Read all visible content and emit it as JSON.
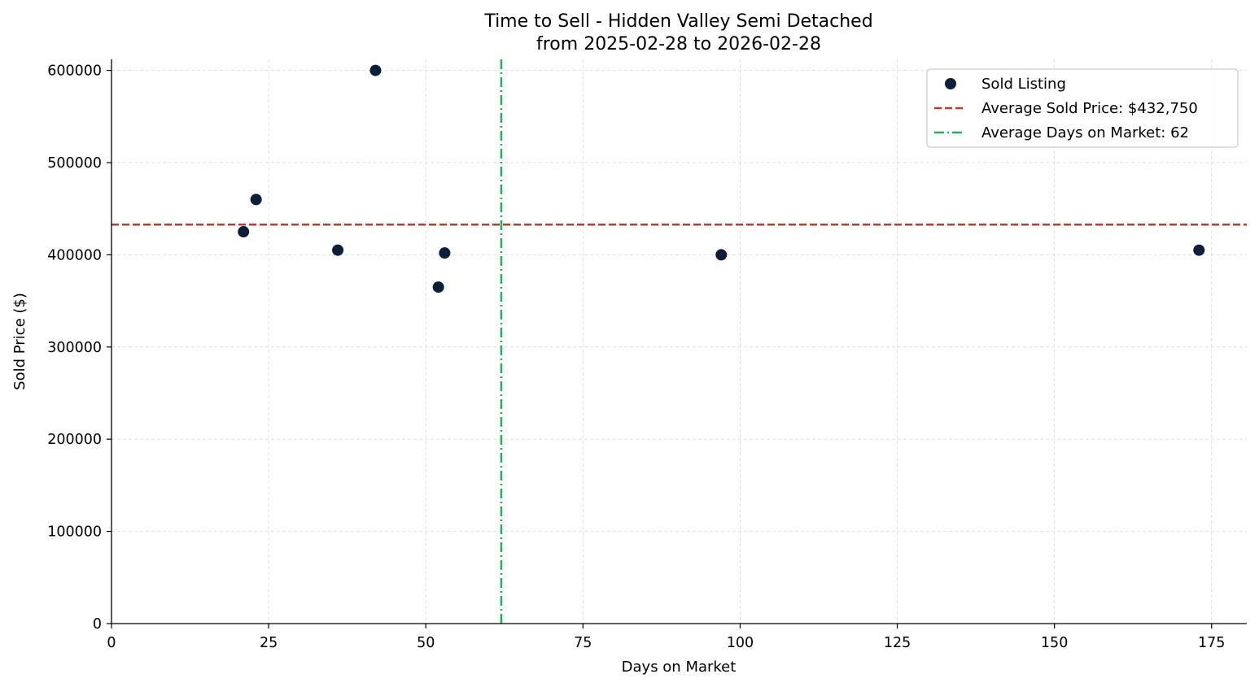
{
  "chart_data": {
    "type": "scatter",
    "title": "Time to Sell - Hidden Valley Semi Detached",
    "subtitle": "from 2025-02-28 to 2026-02-28",
    "xlabel": "Days on Market",
    "ylabel": "Sold Price ($)",
    "xlim": [
      0,
      180.6
    ],
    "ylim": [
      0,
      612000
    ],
    "xticks": [
      0,
      25,
      50,
      75,
      100,
      125,
      150,
      175
    ],
    "yticks": [
      0,
      100000,
      200000,
      300000,
      400000,
      500000,
      600000
    ],
    "grid": true,
    "legend_position": "top-right",
    "series": [
      {
        "name": "Sold Listing",
        "color": "#0b1f3a",
        "x": [
          21,
          23,
          36,
          42,
          52,
          53,
          97,
          173
        ],
        "y": [
          425000,
          460000,
          405000,
          600000,
          365000,
          402000,
          400000,
          405000
        ]
      }
    ],
    "reference_lines": [
      {
        "name": "Average Sold Price: $432,750",
        "orientation": "horizontal",
        "value": 432750,
        "style": "dashed",
        "color": "#c0392b"
      },
      {
        "name": "Average Days on Market: 62",
        "orientation": "vertical",
        "value": 62,
        "style": "dashdot",
        "color": "#27ae60"
      }
    ]
  }
}
